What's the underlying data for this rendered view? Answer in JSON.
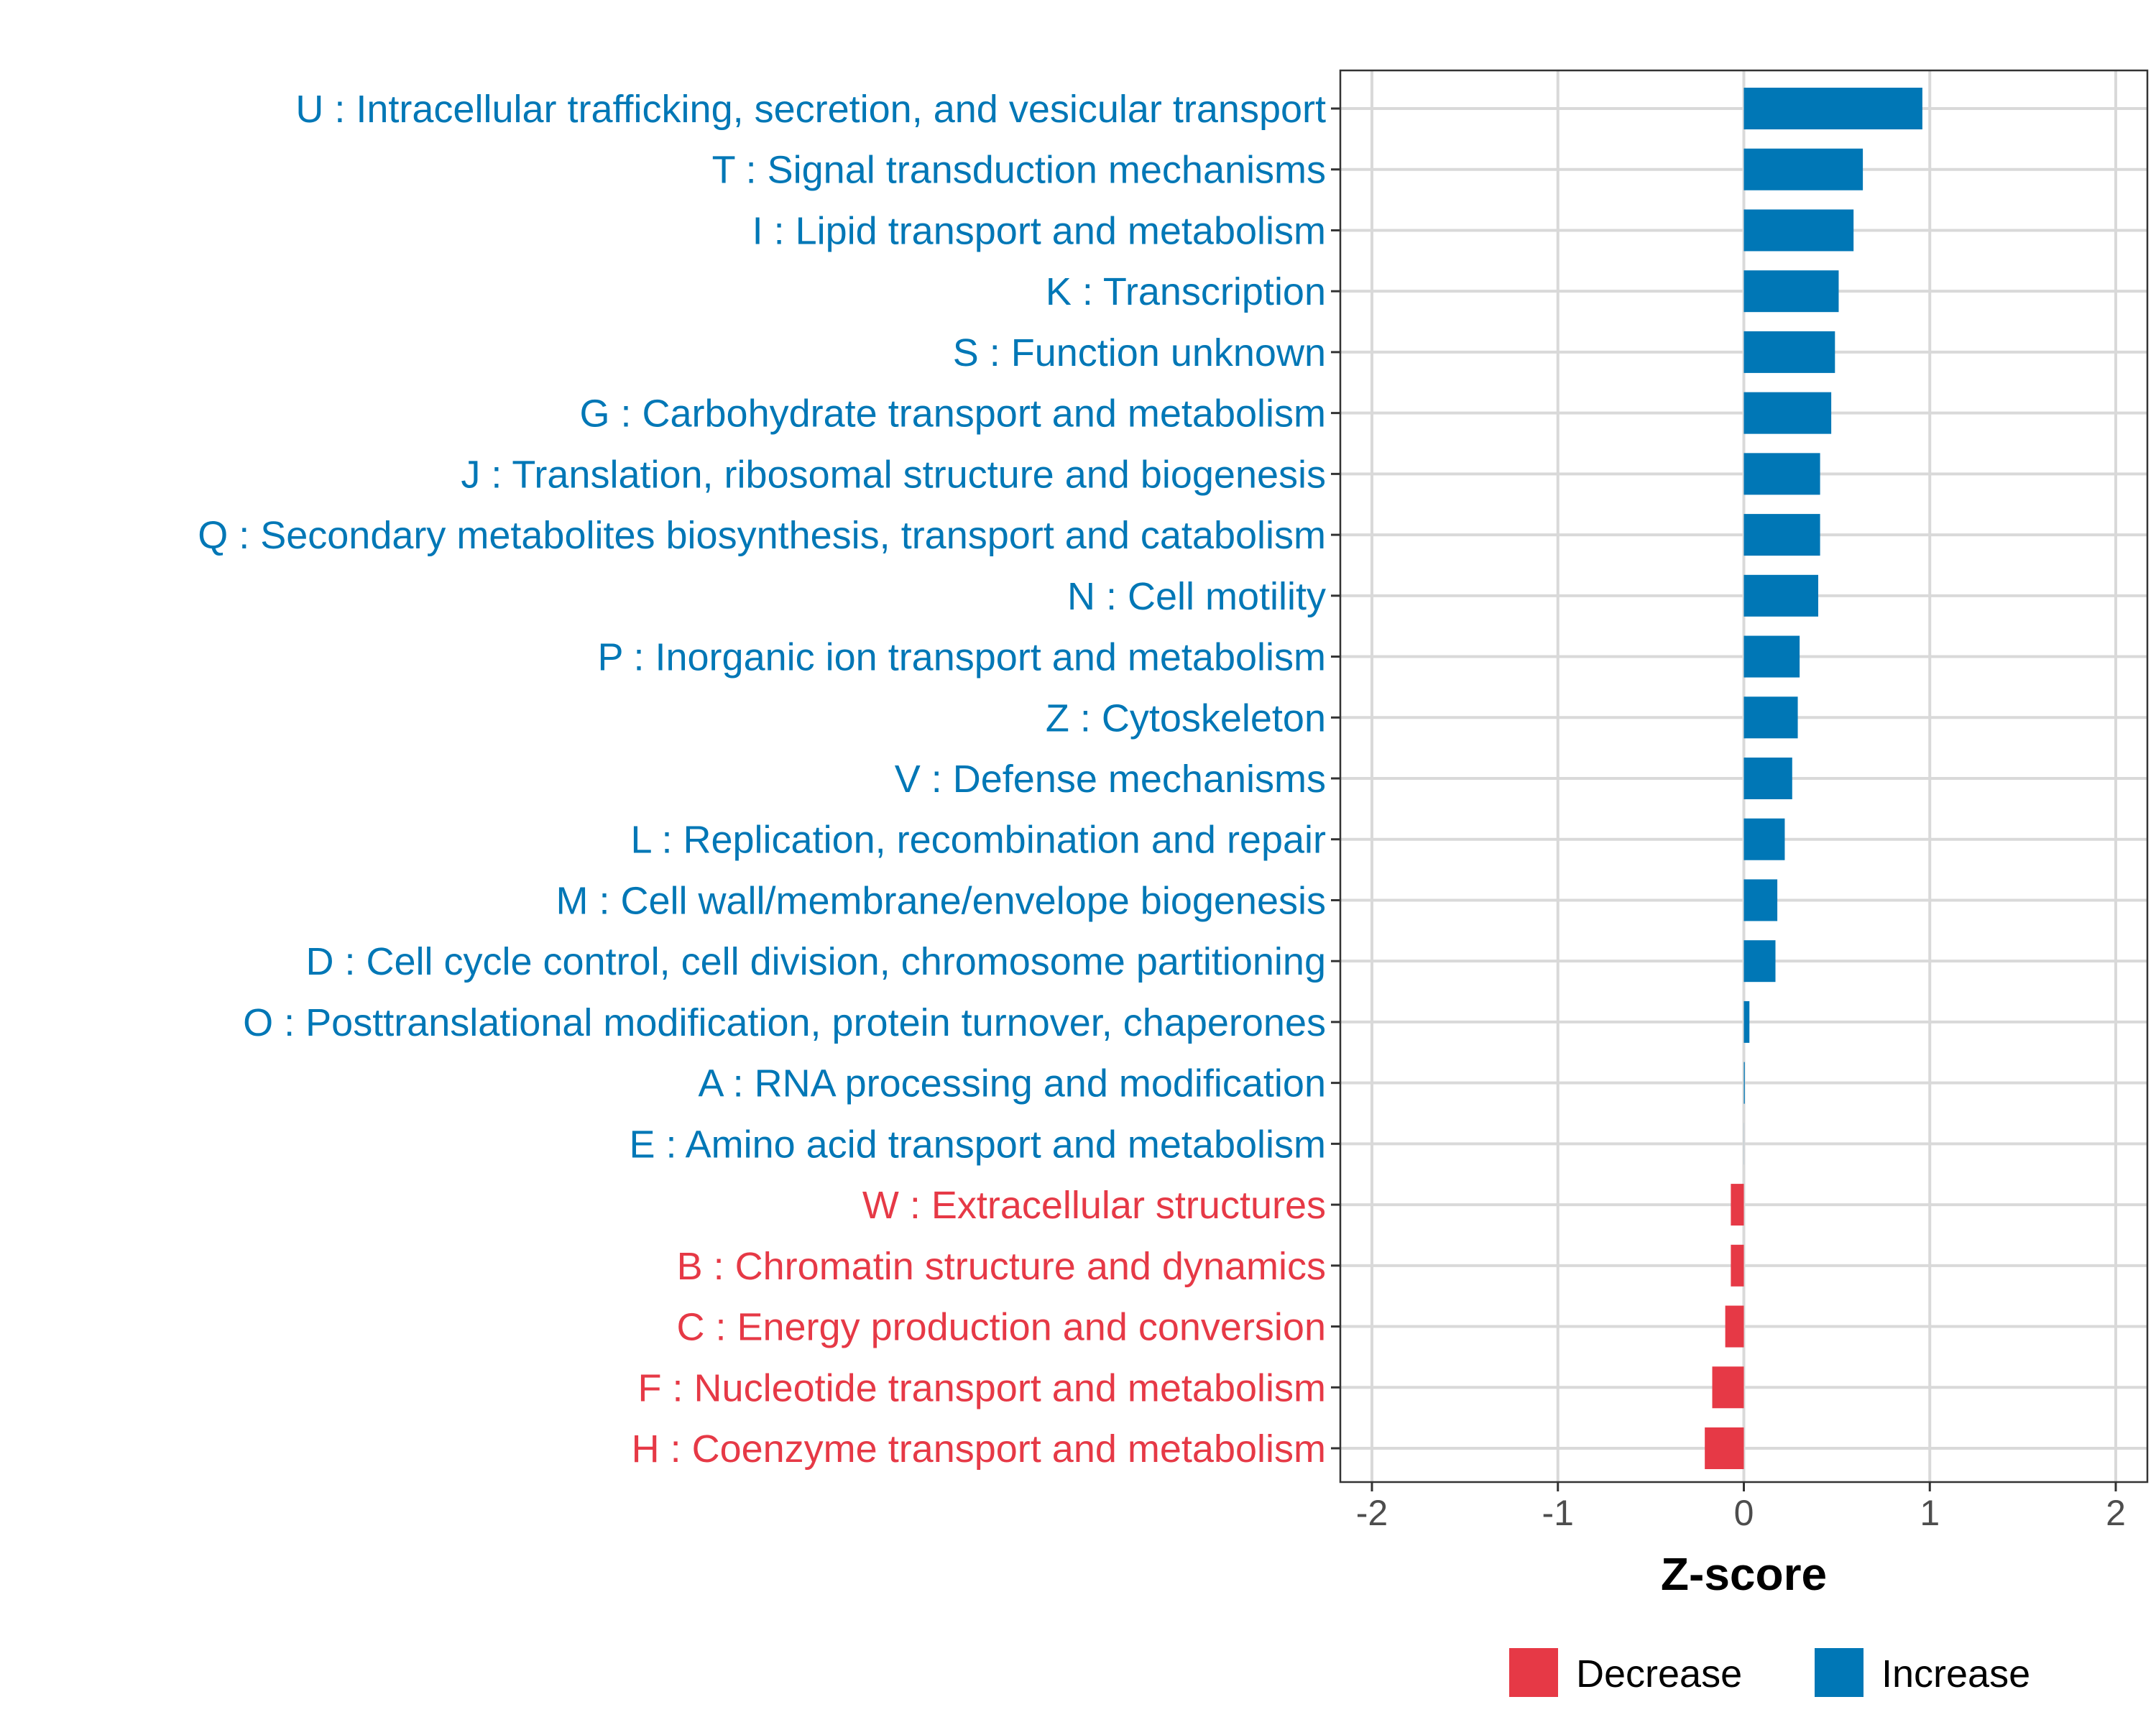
{
  "chart_data": {
    "type": "bar",
    "orientation": "horizontal",
    "xlabel": "Z-score",
    "ylabel": "",
    "xlim": [
      -2.17,
      2.17
    ],
    "xticks": [
      -2,
      -1,
      0,
      1,
      2
    ],
    "xtick_labels": [
      "-2",
      "-1",
      "0",
      "1",
      "2"
    ],
    "grid": true,
    "legend_position": "bottom",
    "colors": {
      "Decrease": "#E63946",
      "Increase": "#0077B6"
    },
    "legend": [
      {
        "name": "Decrease",
        "color": "#E63946"
      },
      {
        "name": "Increase",
        "color": "#0077B6"
      }
    ],
    "categories": [
      "U : Intracellular trafficking, secretion, and vesicular transport",
      "T : Signal transduction mechanisms",
      "I : Lipid transport and metabolism",
      "K : Transcription",
      "S : Function unknown",
      "G : Carbohydrate transport and metabolism",
      "J : Translation, ribosomal structure and biogenesis",
      "Q : Secondary metabolites biosynthesis, transport and catabolism",
      "N : Cell motility",
      "P : Inorganic ion transport and metabolism",
      "Z : Cytoskeleton",
      "V : Defense mechanisms",
      "L : Replication, recombination and repair",
      "M : Cell wall/membrane/envelope biogenesis",
      "D : Cell cycle control, cell division, chromosome partitioning",
      "O : Posttranslational modification, protein turnover, chaperones",
      "A : RNA processing and modification",
      "E : Amino acid transport and metabolism",
      "W : Extracellular structures",
      "B : Chromatin structure and dynamics",
      "C : Energy production and conversion",
      "F : Nucleotide transport and metabolism",
      "H : Coenzyme transport and metabolism"
    ],
    "values": [
      0.96,
      0.64,
      0.59,
      0.51,
      0.49,
      0.47,
      0.41,
      0.41,
      0.4,
      0.3,
      0.29,
      0.26,
      0.22,
      0.18,
      0.17,
      0.03,
      0.005,
      0.0,
      -0.07,
      -0.07,
      -0.1,
      -0.17,
      -0.21
    ],
    "direction": [
      "Increase",
      "Increase",
      "Increase",
      "Increase",
      "Increase",
      "Increase",
      "Increase",
      "Increase",
      "Increase",
      "Increase",
      "Increase",
      "Increase",
      "Increase",
      "Increase",
      "Increase",
      "Increase",
      "Increase",
      "Increase",
      "Decrease",
      "Decrease",
      "Decrease",
      "Decrease",
      "Decrease"
    ]
  }
}
